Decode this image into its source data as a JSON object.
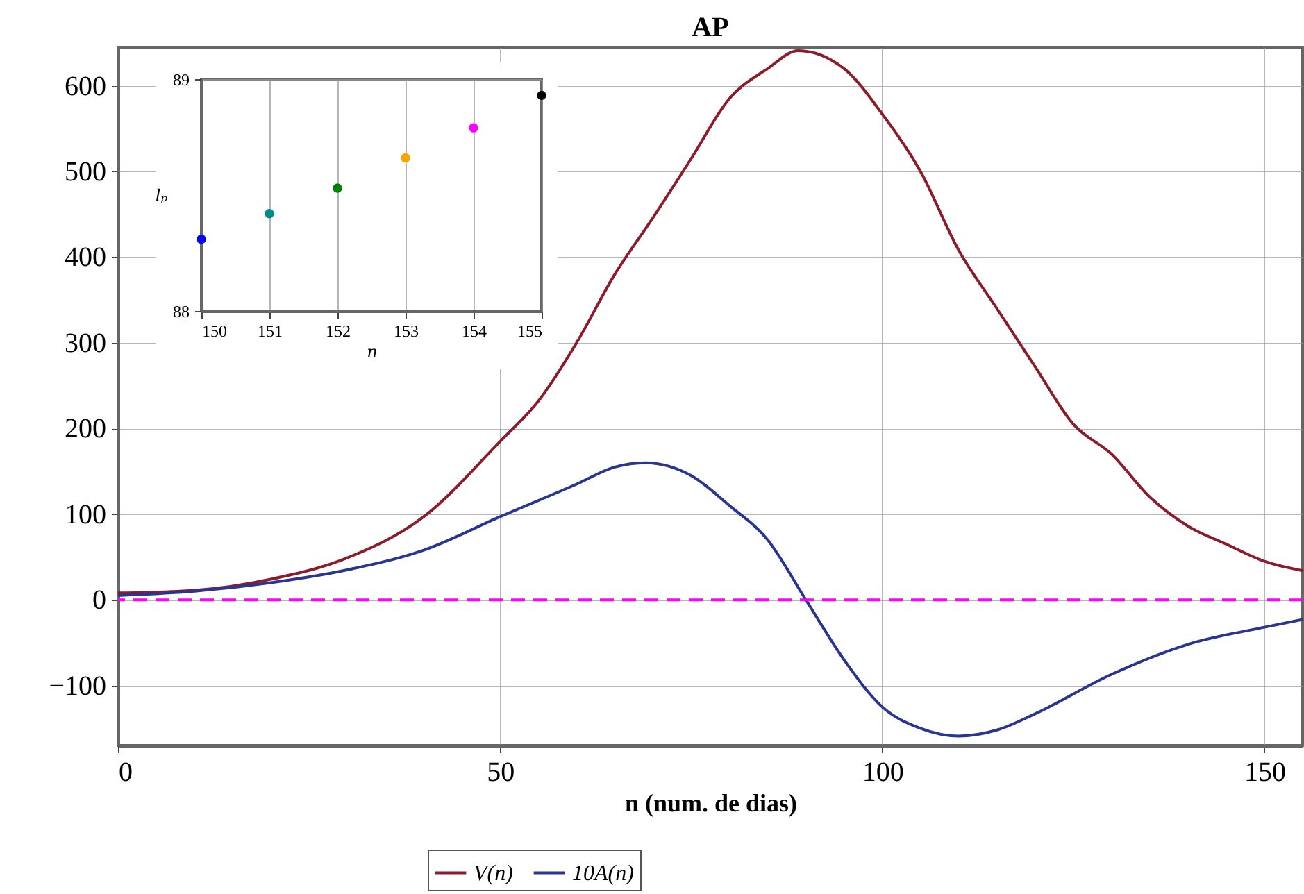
{
  "chart_data": [
    {
      "type": "line",
      "title": "AP",
      "xlabel": "n (num. de dias)",
      "xlim": [
        0,
        155
      ],
      "xticks": [
        0,
        50,
        100,
        150
      ],
      "ylim": [
        -170,
        645
      ],
      "yticks": [
        -100,
        0,
        100,
        200,
        300,
        400,
        500,
        600
      ],
      "grid": true,
      "legend": "bottom",
      "marker": "none",
      "line_style": "solid",
      "series": [
        {
          "name": "V(n)",
          "color": "#8c1c2c",
          "x": [
            0,
            10,
            20,
            30,
            40,
            50,
            55,
            60,
            65,
            70,
            75,
            80,
            85,
            89,
            95,
            100,
            105,
            110,
            115,
            120,
            125,
            130,
            135,
            140,
            145,
            150,
            155
          ],
          "values": [
            8,
            11,
            24,
            49,
            97,
            185,
            232,
            300,
            380,
            446,
            515,
            585,
            620,
            641,
            620,
            567,
            500,
            408,
            340,
            272,
            205,
            170,
            120,
            86,
            65,
            45,
            34
          ]
        },
        {
          "name": "10A(n)",
          "color": "#2a3590",
          "x": [
            0,
            10,
            20,
            30,
            40,
            50,
            60,
            65,
            69,
            75,
            80,
            85,
            90,
            95,
            100,
            105,
            110,
            115,
            120,
            130,
            140,
            150,
            155
          ],
          "values": [
            5,
            10,
            20,
            35,
            58,
            97,
            135,
            155,
            160,
            145,
            110,
            70,
            0,
            -70,
            -125,
            -150,
            -159,
            -152,
            -133,
            -87,
            -52,
            -32,
            -23
          ]
        }
      ],
      "ref_lines": [
        {
          "axis": "y",
          "value": 0,
          "color": "#ff00ff",
          "line_style": "dashed"
        }
      ]
    },
    {
      "type": "scatter",
      "xlabel": "n",
      "ylabel": "lₚ",
      "x": [
        150,
        151,
        152,
        153,
        154,
        155
      ],
      "values": [
        88.31,
        88.42,
        88.53,
        88.66,
        88.79,
        88.93
      ],
      "colors": [
        "#0000ff",
        "#008b8b",
        "#008000",
        "#ffa500",
        "#ff00ff",
        "#000000"
      ],
      "xlim": [
        150,
        155
      ],
      "xticks": [
        150,
        151,
        152,
        153,
        154,
        155
      ],
      "ylim": [
        88,
        89
      ],
      "yticks": [
        {
          "value": 88,
          "label": "88"
        },
        {
          "value": 89,
          "label": "89"
        }
      ],
      "grid": true,
      "marker": "circle"
    }
  ]
}
